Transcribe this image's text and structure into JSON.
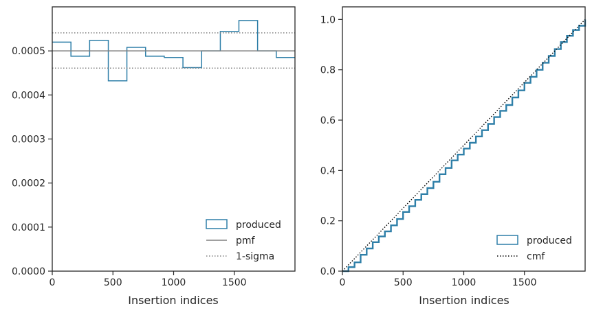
{
  "chart_data": [
    {
      "type": "histogram-step",
      "xlabel": "Insertion indices",
      "ylabel": "",
      "xlim": [
        0,
        2000
      ],
      "ylim": [
        0,
        0.0006
      ],
      "xticks": [
        0,
        500,
        1000,
        1500
      ],
      "xtick_labels": [
        "0",
        "500",
        "1000",
        "1500"
      ],
      "yticks": [
        0,
        0.0001,
        0.0002,
        0.0003,
        0.0004,
        0.0005
      ],
      "ytick_labels": [
        "0.0000",
        "0.0001",
        "0.0002",
        "0.0003",
        "0.0004",
        "0.0005"
      ],
      "grid": false,
      "legend_position": "lower-right",
      "bin_edges": [
        0,
        154,
        308,
        462,
        615,
        769,
        923,
        1077,
        1231,
        1385,
        1538,
        1692,
        1846,
        2000
      ],
      "series": [
        {
          "name": "produced",
          "kind": "step-hist",
          "color": "#2e7fa8",
          "values": [
            0.00052,
            0.000488,
            0.000524,
            0.000432,
            0.000508,
            0.000488,
            0.000485,
            0.000462,
            0.0005,
            0.000544,
            0.000569,
            0.0005,
            0.000485
          ]
        },
        {
          "name": "pmf",
          "kind": "hline",
          "color": "#808080",
          "y": 0.0005
        },
        {
          "name": "1-sigma",
          "kind": "hline-dotted",
          "color": "#808080",
          "y": [
            0.000461,
            0.000541
          ]
        }
      ]
    },
    {
      "type": "line",
      "xlabel": "Insertion indices",
      "ylabel": "",
      "xlim": [
        0,
        2000
      ],
      "ylim": [
        0,
        1.05
      ],
      "xticks": [
        0,
        500,
        1000,
        1500
      ],
      "xtick_labels": [
        "0",
        "500",
        "1000",
        "1500"
      ],
      "yticks": [
        0,
        0.2,
        0.4,
        0.6,
        0.8,
        1.0
      ],
      "ytick_labels": [
        "0.0",
        "0.2",
        "0.4",
        "0.6",
        "0.8",
        "1.0"
      ],
      "grid": false,
      "legend_position": "lower-right",
      "series": [
        {
          "name": "produced",
          "kind": "step",
          "color": "#2e7fa8",
          "x": [
            0,
            50,
            100,
            150,
            200,
            250,
            300,
            350,
            400,
            450,
            500,
            550,
            600,
            650,
            700,
            750,
            800,
            850,
            900,
            950,
            1000,
            1050,
            1100,
            1150,
            1200,
            1250,
            1300,
            1350,
            1400,
            1450,
            1500,
            1550,
            1600,
            1650,
            1700,
            1750,
            1800,
            1850,
            1900,
            1950,
            2000
          ],
          "y": [
            0,
            0.016,
            0.035,
            0.065,
            0.09,
            0.115,
            0.138,
            0.158,
            0.182,
            0.207,
            0.235,
            0.258,
            0.283,
            0.306,
            0.33,
            0.355,
            0.385,
            0.41,
            0.44,
            0.463,
            0.487,
            0.51,
            0.535,
            0.56,
            0.585,
            0.612,
            0.637,
            0.66,
            0.69,
            0.718,
            0.748,
            0.772,
            0.8,
            0.828,
            0.855,
            0.882,
            0.91,
            0.935,
            0.958,
            0.975,
            1.0
          ]
        },
        {
          "name": "cmf",
          "kind": "dotted",
          "color": "#000000",
          "x": [
            0,
            2000
          ],
          "y": [
            0,
            1.0
          ]
        }
      ]
    }
  ]
}
